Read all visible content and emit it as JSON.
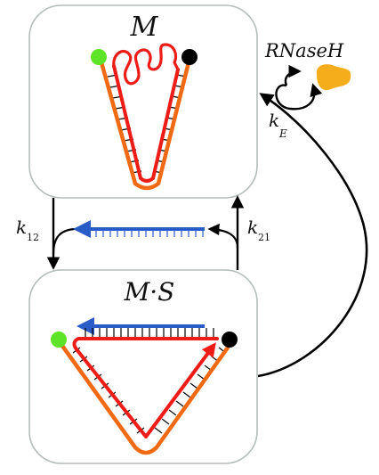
{
  "states": {
    "top": {
      "label": "M"
    },
    "bottom": {
      "label": "M·S"
    }
  },
  "enzyme": {
    "label": "RNaseH",
    "color": "#f5ad1c"
  },
  "rates": {
    "k12": {
      "main": "k",
      "sub": "12"
    },
    "k21": {
      "main": "k",
      "sub": "21"
    },
    "kE": {
      "main": "k",
      "sub": "E"
    }
  },
  "colors": {
    "box_stroke": "#b5bcbc",
    "orange_strand": "#f06a14",
    "red_strand": "#ee1c16",
    "blue_strand": "#2a5cc8",
    "end_green": "#5de327",
    "end_black": "#000000"
  }
}
